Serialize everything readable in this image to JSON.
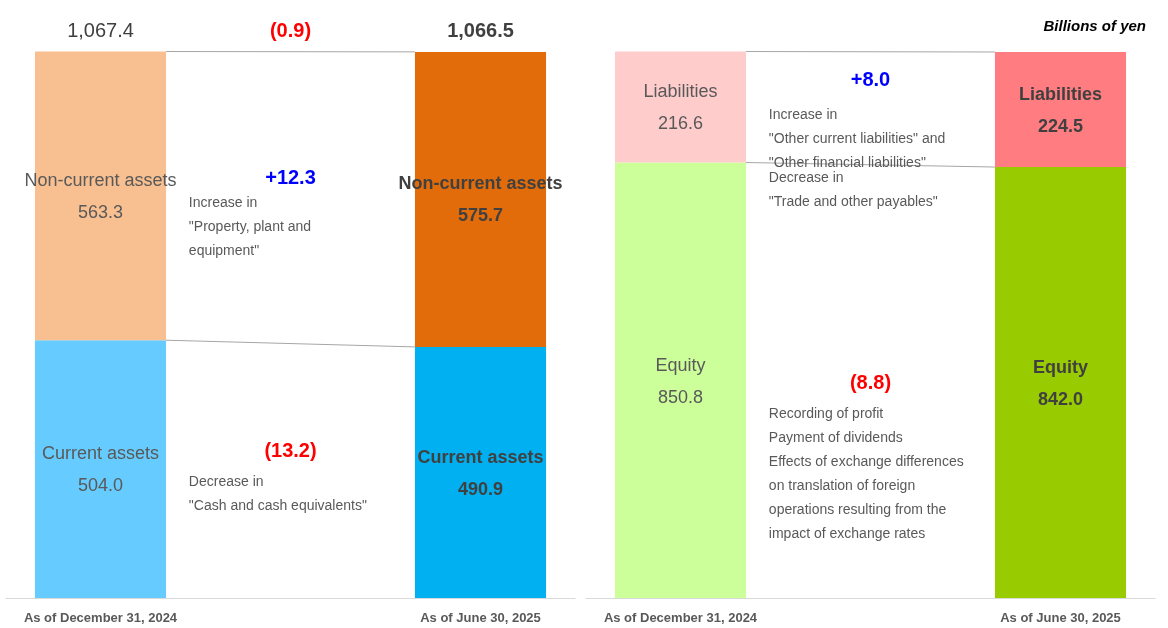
{
  "chart_data": [
    {
      "type": "bar",
      "stacked": true,
      "categories": [
        "As of December 31, 2024",
        null,
        "As of June 30, 2025"
      ],
      "tick_labels": "x",
      "grid": false,
      "series": [
        {
          "name": "Current assets",
          "values": [
            504.0,
            null,
            490.9
          ],
          "colors": [
            "#66ccff",
            null,
            "#00b0f0"
          ],
          "value_labels": [
            "504.0",
            null,
            "490.9"
          ]
        },
        {
          "name": "Non-current assets",
          "values": [
            563.3,
            null,
            575.7
          ],
          "colors": [
            "#f8c090",
            null,
            "#e36c0a"
          ],
          "value_labels": [
            "563.3",
            null,
            "575.7"
          ]
        }
      ],
      "totals": [
        "1,067.4",
        null,
        "1,066.5"
      ],
      "annotations": [
        "(0.9)",
        "+12.3",
        "Increase in\n\"Property, plant and\nequipment\"",
        "(13.2)",
        "Decrease in\n\"Cash and cash equivalents\""
      ]
    },
    {
      "type": "bar",
      "stacked": true,
      "categories": [
        "As of December 31, 2024",
        null,
        "As of June 30, 2025"
      ],
      "tick_labels": "x",
      "grid": false,
      "subtitle": "Billions of yen",
      "series": [
        {
          "name": "Equity",
          "values": [
            850.8,
            null,
            842.0
          ],
          "colors": [
            "#ccff99",
            null,
            "#99cc00"
          ],
          "value_labels": [
            "850.8",
            null,
            "842.0"
          ]
        },
        {
          "name": "Liabilities",
          "values": [
            216.6,
            null,
            224.5
          ],
          "colors": [
            "#ffcccc",
            null,
            "#ff7c80"
          ],
          "value_labels": [
            "216.6",
            null,
            "224.5"
          ]
        }
      ],
      "annotations": [
        "+8.0",
        "Increase in\n\"Other current liabilities\" and\n\"Other financial liabilities\"",
        "Decrease in\n\"Trade and other payables\"",
        "(8.8)",
        "Recording of profit\nPayment of dividends\nEffects of exchange differences\non translation of foreign\noperations resulting from the\nimpact of exchange rates"
      ]
    }
  ]
}
